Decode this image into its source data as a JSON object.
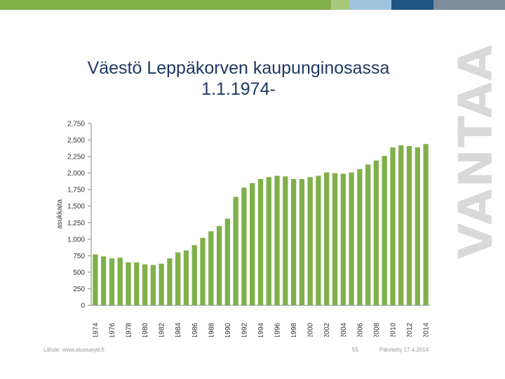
{
  "branding": {
    "logo_text": "VANTAA"
  },
  "header": {
    "title_line1": "Väestö Leppäkorven kaupunginosassa",
    "title_line2": "1.1.1974-"
  },
  "colors": {
    "title": "#1f3864",
    "bar": "#7fb04a",
    "top_bar": [
      "#7fb04a",
      "#a7c97c",
      "#9ec3de",
      "#1f5582",
      "#7d8c98"
    ]
  },
  "chart_data": {
    "type": "bar",
    "title": "",
    "xlabel": "",
    "ylabel": "asukkaita",
    "ylim": [
      0,
      2750
    ],
    "yticks": [
      0,
      250,
      500,
      750,
      1000,
      1250,
      1500,
      1750,
      2000,
      2250,
      2500,
      2750
    ],
    "ytick_labels": [
      "0",
      "250",
      "500",
      "750",
      "1,000",
      "1,250",
      "1,500",
      "1,750",
      "2,000",
      "2,250",
      "2,500",
      "2,750"
    ],
    "categories": [
      "1974",
      "1975",
      "1976",
      "1977",
      "1978",
      "1979",
      "1980",
      "1981",
      "1982",
      "1983",
      "1984",
      "1985",
      "1986",
      "1987",
      "1988",
      "1989",
      "1990",
      "1991",
      "1992",
      "1993",
      "1994",
      "1995",
      "1996",
      "1997",
      "1998",
      "1999",
      "2000",
      "2001",
      "2002",
      "2003",
      "2004",
      "2005",
      "2006",
      "2007",
      "2008",
      "2009",
      "2010",
      "2011",
      "2012",
      "2013",
      "2014"
    ],
    "xtick_labels": [
      "1974",
      "",
      "1976",
      "",
      "1978",
      "",
      "1980",
      "",
      "1982",
      "",
      "1984",
      "",
      "1986",
      "",
      "1988",
      "",
      "1990",
      "",
      "1992",
      "",
      "1994",
      "",
      "1996",
      "",
      "1998",
      "",
      "2000",
      "",
      "2002",
      "",
      "2004",
      "",
      "2006",
      "",
      "2008",
      "",
      "2010",
      "",
      "2012",
      "",
      "2014"
    ],
    "values": [
      770,
      740,
      710,
      720,
      650,
      650,
      620,
      610,
      630,
      710,
      800,
      830,
      910,
      1020,
      1120,
      1200,
      1310,
      1640,
      1780,
      1850,
      1910,
      1940,
      1960,
      1950,
      1910,
      1910,
      1940,
      1960,
      2010,
      2000,
      1990,
      2010,
      2060,
      2130,
      2190,
      2260,
      2390,
      2420,
      2410,
      2390,
      2440
    ],
    "grid": false,
    "legend": "none"
  },
  "footer": {
    "source": "Lähde: www.aluesarjat.fi",
    "page": "55",
    "updated": "Päivitetty 17.4.2014"
  }
}
